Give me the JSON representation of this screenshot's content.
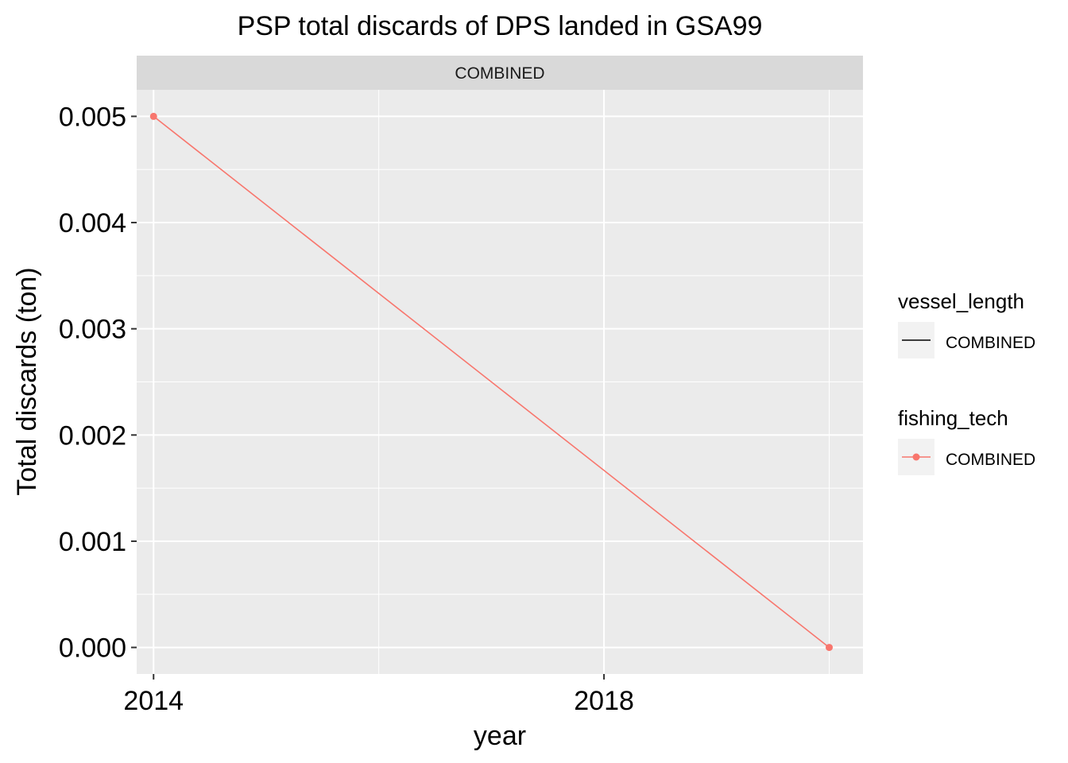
{
  "chart_data": {
    "type": "line",
    "title": "PSP total discards of DPS landed in GSA99",
    "facet_label": "COMBINED",
    "xlabel": "year",
    "ylabel": "Total discards (ton)",
    "x_ticks": [
      2014,
      2018
    ],
    "y_ticks": [
      "0.000",
      "0.001",
      "0.002",
      "0.003",
      "0.004",
      "0.005"
    ],
    "xlim": [
      2013.85,
      2020.3
    ],
    "ylim": [
      -0.00025,
      0.00525
    ],
    "grid": true,
    "legend_position": "right",
    "series": [
      {
        "name": "COMBINED",
        "color": "#F8766D",
        "x": [
          2014,
          2020
        ],
        "y": [
          0.005,
          0.0
        ]
      }
    ],
    "legends": [
      {
        "title": "vessel_length",
        "key": "line",
        "color": "#000000",
        "label": "COMBINED"
      },
      {
        "title": "fishing_tech",
        "key": "line-point",
        "color": "#F8766D",
        "label": "COMBINED"
      }
    ]
  }
}
